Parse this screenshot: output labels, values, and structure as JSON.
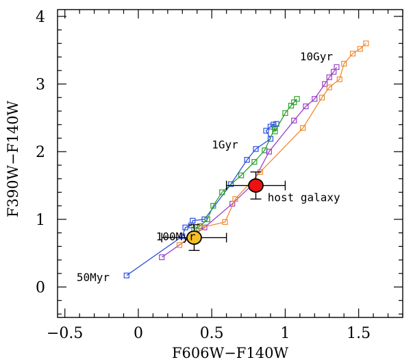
{
  "chart_data": {
    "type": "scatter",
    "xlabel": "F606W−F140W",
    "ylabel": "F390W−F140W",
    "xlim": [
      -0.55,
      1.8
    ],
    "ylim": [
      -0.45,
      4.1
    ],
    "x_ticks": [
      -0.5,
      0,
      0.5,
      1,
      1.5
    ],
    "x_tick_labels": [
      "−0.5",
      "0",
      "0.5",
      "1",
      "1.5"
    ],
    "y_ticks": [
      0,
      1,
      2,
      3,
      4
    ],
    "y_tick_labels": [
      "0",
      "1",
      "2",
      "3",
      "4"
    ],
    "x_minor_step": 0.1,
    "y_minor_step": 0.2,
    "grid": false,
    "series": [
      {
        "color": "#2a4ee0",
        "points": [
          [
            -0.08,
            0.17
          ],
          [
            0.3,
            0.75
          ],
          [
            0.32,
            0.88
          ],
          [
            0.36,
            0.91
          ],
          [
            0.37,
            0.98
          ],
          [
            0.45,
            1.0
          ],
          [
            0.63,
            1.52
          ],
          [
            0.74,
            1.88
          ],
          [
            0.8,
            2.04
          ],
          [
            0.9,
            2.19
          ],
          [
            0.87,
            2.31
          ],
          [
            0.9,
            2.37
          ],
          [
            0.92,
            2.4
          ],
          [
            0.94,
            2.41
          ]
        ]
      },
      {
        "color": "#2ca02c",
        "points": [
          [
            0.38,
            0.85
          ],
          [
            0.42,
            0.9
          ],
          [
            0.47,
            1.0
          ],
          [
            0.51,
            1.2
          ],
          [
            0.57,
            1.4
          ],
          [
            0.7,
            1.65
          ],
          [
            0.79,
            1.85
          ],
          [
            0.86,
            2.02
          ],
          [
            0.93,
            2.35
          ],
          [
            0.93,
            2.3
          ],
          [
            1.0,
            2.57
          ],
          [
            1.04,
            2.68
          ],
          [
            1.06,
            2.73
          ],
          [
            1.08,
            2.78
          ]
        ]
      },
      {
        "color": "#9a3fc8",
        "points": [
          [
            0.16,
            0.44
          ],
          [
            0.45,
            0.88
          ],
          [
            0.64,
            1.23
          ],
          [
            0.77,
            1.5
          ],
          [
            0.89,
            2.0
          ],
          [
            1.06,
            2.46
          ],
          [
            1.14,
            2.67
          ],
          [
            1.2,
            2.78
          ],
          [
            1.27,
            3.0
          ],
          [
            1.3,
            3.1
          ],
          [
            1.33,
            3.18
          ],
          [
            1.35,
            3.25
          ]
        ]
      },
      {
        "color": "#f08a30",
        "points": [
          [
            0.28,
            0.62
          ],
          [
            0.43,
            0.88
          ],
          [
            0.59,
            0.96
          ],
          [
            0.66,
            1.3
          ],
          [
            0.83,
            1.7
          ],
          [
            1.12,
            2.35
          ],
          [
            1.25,
            2.8
          ],
          [
            1.3,
            2.95
          ],
          [
            1.37,
            3.07
          ],
          [
            1.4,
            3.3
          ],
          [
            1.46,
            3.45
          ],
          [
            1.51,
            3.52
          ],
          [
            1.55,
            3.6
          ]
        ]
      }
    ],
    "points_with_errors": [
      {
        "x": 0.8,
        "y": 1.5,
        "xerr": 0.2,
        "yerr": 0.2,
        "color": "#ee1111"
      },
      {
        "x": 0.38,
        "y": 0.73,
        "xerr": 0.22,
        "yerr": 0.19,
        "color": "#f5c025"
      }
    ],
    "annotations": [
      {
        "text": "10Gyr",
        "x": 1.1,
        "y": 3.4
      },
      {
        "text": "1Gyr",
        "x": 0.5,
        "y": 2.1
      },
      {
        "text": "host galaxy",
        "x": 0.88,
        "y": 1.32
      },
      {
        "text": "100Myr",
        "x": 0.12,
        "y": 0.74
      },
      {
        "text": "50Myr",
        "x": -0.42,
        "y": 0.14
      }
    ]
  }
}
